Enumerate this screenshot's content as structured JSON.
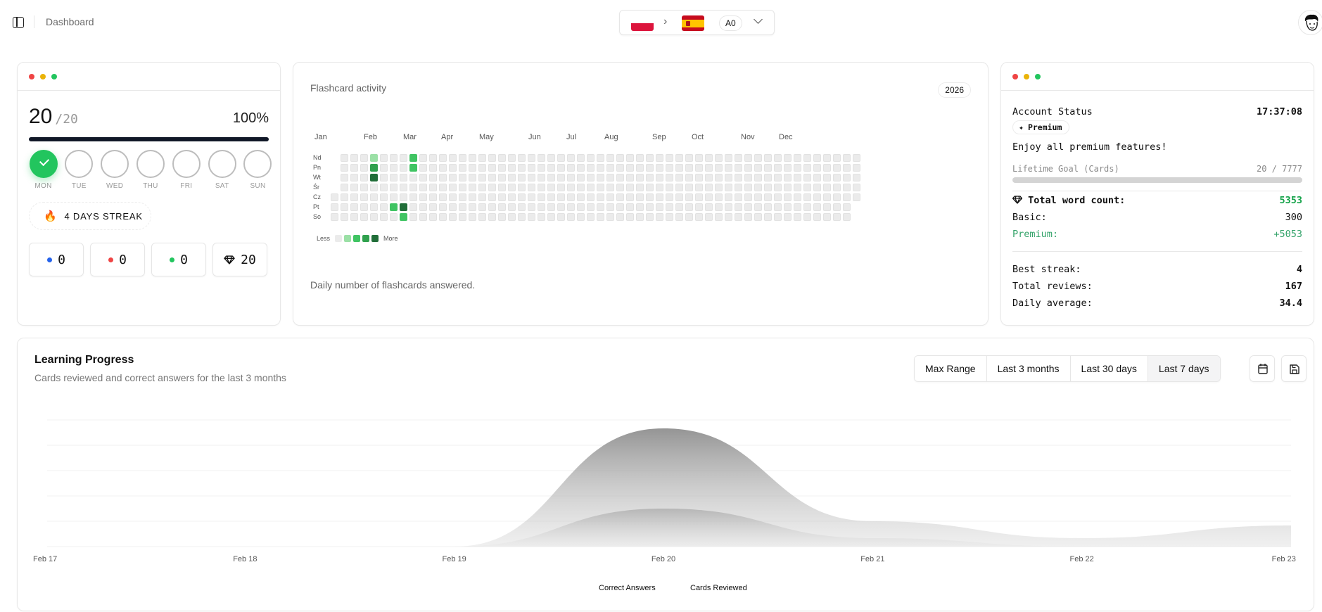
{
  "topbar": {
    "breadcrumb": "Dashboard",
    "language_from": "Polish",
    "language_to": "Spanish",
    "arrow": "›",
    "level": "A0",
    "user_avatar": "avatar-cartoon"
  },
  "daily_goal": {
    "done": "20",
    "target": "/20",
    "percent": "100%",
    "progress": 100,
    "days": [
      {
        "label": "MON",
        "done": true
      },
      {
        "label": "TUE",
        "done": false
      },
      {
        "label": "WED",
        "done": false
      },
      {
        "label": "THU",
        "done": false
      },
      {
        "label": "FRI",
        "done": false
      },
      {
        "label": "SAT",
        "done": false
      },
      {
        "label": "SUN",
        "done": false
      }
    ],
    "streak_label": "4 DAYS STREAK",
    "counters": [
      {
        "color": "#2563eb",
        "value": "0",
        "icon": "blue-dot"
      },
      {
        "color": "#ef4444",
        "value": "0",
        "icon": "red-dot"
      },
      {
        "color": "#22c55e",
        "value": "0",
        "icon": "green-dot"
      },
      {
        "color": null,
        "value": "20",
        "icon": "gem-icon"
      }
    ]
  },
  "activity": {
    "title": "Flashcard activity",
    "year": "2026",
    "months": [
      "Jan",
      "Feb",
      "Mar",
      "Apr",
      "May",
      "Jun",
      "Jul",
      "Aug",
      "Sep",
      "Oct",
      "Nov",
      "Dec"
    ],
    "weekdays": [
      "Nd",
      "Pn",
      "Wt",
      "Śr",
      "Cz",
      "Pt",
      "So"
    ],
    "legend_less": "Less",
    "legend_more": "More",
    "caption": "Daily number of flashcards answered.",
    "levels_colors": [
      "#ebebeb",
      "#9be0a6",
      "#40c463",
      "#30a14e",
      "#216e39"
    ],
    "active_cells": [
      {
        "col": 4,
        "row": 0,
        "level": 1
      },
      {
        "col": 4,
        "row": 1,
        "level": 3
      },
      {
        "col": 4,
        "row": 2,
        "level": 4
      },
      {
        "col": 6,
        "row": 5,
        "level": 2
      },
      {
        "col": 7,
        "row": 5,
        "level": 4
      },
      {
        "col": 7,
        "row": 6,
        "level": 2
      },
      {
        "col": 8,
        "row": 0,
        "level": 2
      },
      {
        "col": 8,
        "row": 1,
        "level": 2
      }
    ]
  },
  "account": {
    "status_label": "Account Status",
    "time": "17:37:08",
    "plan": "Premium",
    "message": "Enjoy all premium features!",
    "goal_label": "Lifetime Goal (Cards)",
    "goal_value": "20 / 7777",
    "total_label": "Total word count:",
    "total_value": "5353",
    "basic_label": "Basic:",
    "basic_value": "300",
    "premium_label": "Premium:",
    "premium_value": "+5053",
    "best_streak_label": "Best streak:",
    "best_streak_value": "4",
    "total_reviews_label": "Total reviews:",
    "total_reviews_value": "167",
    "daily_avg_label": "Daily average:",
    "daily_avg_value": "34.4"
  },
  "progress": {
    "title": "Learning Progress",
    "subtitle": "Cards reviewed and correct answers for the last 3 months",
    "ranges": [
      {
        "label": "Max Range",
        "active": false
      },
      {
        "label": "Last 3 months",
        "active": false
      },
      {
        "label": "Last 30 days",
        "active": false
      },
      {
        "label": "Last 7 days",
        "active": true
      }
    ],
    "calendar_button": "calendar-icon",
    "save_button": "save-icon"
  },
  "chart_data": {
    "type": "area",
    "title": "Learning Progress",
    "subtitle": "Cards reviewed and correct answers for the last 3 months",
    "categories": [
      "Feb 17",
      "Feb 18",
      "Feb 19",
      "Feb 20",
      "Feb 21",
      "Feb 22",
      "Feb 23"
    ],
    "series": [
      {
        "name": "Cards Reviewed",
        "values": [
          0,
          0,
          0,
          140,
          30,
          10,
          25
        ]
      },
      {
        "name": "Correct Answers",
        "values": [
          0,
          0,
          0,
          45,
          10,
          0,
          0
        ]
      }
    ],
    "legend": [
      "Correct Answers",
      "Cards Reviewed"
    ],
    "legend_position": "bottom",
    "grid": true,
    "ylim": [
      0,
      150
    ],
    "xlabel": "",
    "ylabel": ""
  }
}
